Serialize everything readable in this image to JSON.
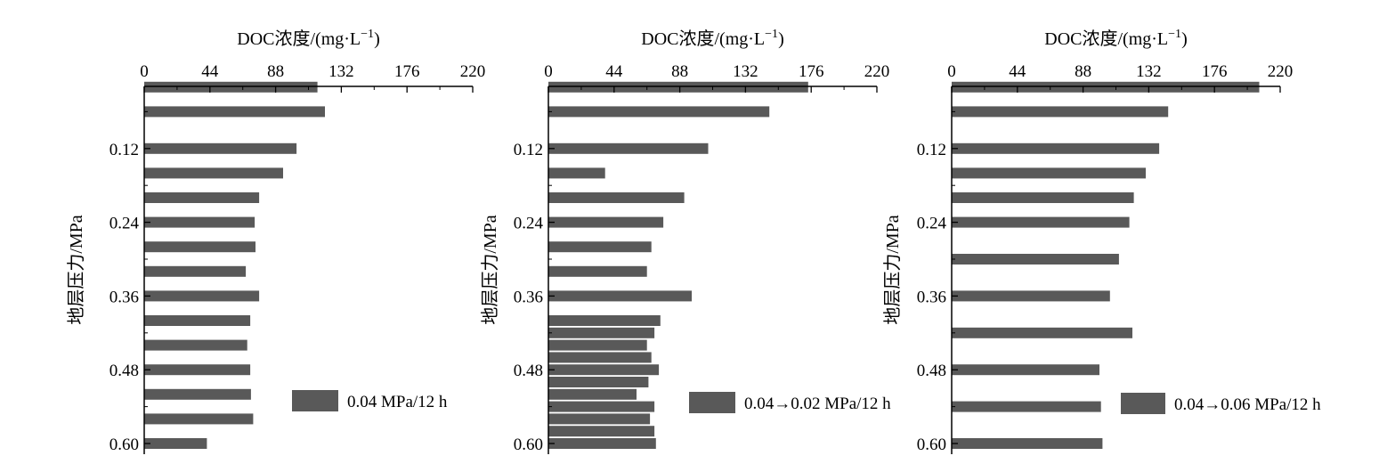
{
  "figure": {
    "bar_color": "#595959",
    "axis_color": "#000000"
  },
  "chart_data": [
    {
      "type": "bar",
      "orientation": "horizontal",
      "xlabel_main": "DOC浓度/(mg·L",
      "xlabel_sup": "−1",
      "xlabel_tail": ")",
      "ylabel": "地层压力/MPa",
      "xlim": [
        0,
        220
      ],
      "xticks": [
        0,
        44,
        88,
        132,
        176,
        220
      ],
      "ylim": [
        0,
        0.6
      ],
      "yticks": [
        0.12,
        0.24,
        0.36,
        0.48,
        0.6
      ],
      "ytick_labels": [
        "0.12",
        "0.24",
        "0.36",
        "0.48",
        "0.60"
      ],
      "grid": false,
      "legend_position": "lower-right",
      "series": [
        {
          "name": "0.04 MPa/12 h",
          "y": [
            0.02,
            0.06,
            0.12,
            0.16,
            0.2,
            0.24,
            0.28,
            0.32,
            0.36,
            0.4,
            0.44,
            0.48,
            0.52,
            0.56,
            0.6
          ],
          "values": [
            116,
            121,
            102,
            93,
            77,
            74,
            74.5,
            68,
            77,
            71,
            69,
            71,
            71.5,
            73,
            42
          ]
        }
      ]
    },
    {
      "type": "bar",
      "orientation": "horizontal",
      "xlabel_main": "DOC浓度/(mg·L",
      "xlabel_sup": "−1",
      "xlabel_tail": ")",
      "ylabel": "地层压力/MPa",
      "xlim": [
        0,
        220
      ],
      "xticks": [
        0,
        44,
        88,
        132,
        176,
        220
      ],
      "ylim": [
        0,
        0.6
      ],
      "yticks": [
        0.12,
        0.24,
        0.36,
        0.48,
        0.6
      ],
      "ytick_labels": [
        "0.12",
        "0.24",
        "0.36",
        "0.48",
        "0.60"
      ],
      "grid": false,
      "legend_position": "lower-right",
      "series": [
        {
          "name": "0.04→0.02 MPa/12 h",
          "y": [
            0.02,
            0.06,
            0.12,
            0.16,
            0.2,
            0.24,
            0.28,
            0.32,
            0.36,
            0.4,
            0.42,
            0.44,
            0.46,
            0.48,
            0.5,
            0.52,
            0.54,
            0.56,
            0.58,
            0.6
          ],
          "values": [
            174,
            148,
            107,
            38,
            91,
            77,
            69,
            66,
            96,
            75,
            71,
            66,
            69,
            74,
            67,
            59,
            71,
            68,
            71,
            72
          ]
        }
      ]
    },
    {
      "type": "bar",
      "orientation": "horizontal",
      "xlabel_main": "DOC浓度/(mg·L",
      "xlabel_sup": "−1",
      "xlabel_tail": ")",
      "ylabel": "地层压力/MPa",
      "xlim": [
        0,
        220
      ],
      "xticks": [
        0,
        44,
        88,
        132,
        176,
        220
      ],
      "ylim": [
        0,
        0.6
      ],
      "yticks": [
        0.12,
        0.24,
        0.36,
        0.48,
        0.6
      ],
      "ytick_labels": [
        "0.12",
        "0.24",
        "0.36",
        "0.48",
        "0.60"
      ],
      "grid": false,
      "legend_position": "lower-right",
      "series": [
        {
          "name": "0.04→0.06 MPa/12 h",
          "y": [
            0.02,
            0.06,
            0.12,
            0.16,
            0.2,
            0.24,
            0.3,
            0.36,
            0.42,
            0.48,
            0.54,
            0.6
          ],
          "values": [
            206,
            145,
            139,
            130,
            122,
            119,
            112,
            106,
            121,
            99,
            100,
            101
          ]
        }
      ]
    }
  ]
}
